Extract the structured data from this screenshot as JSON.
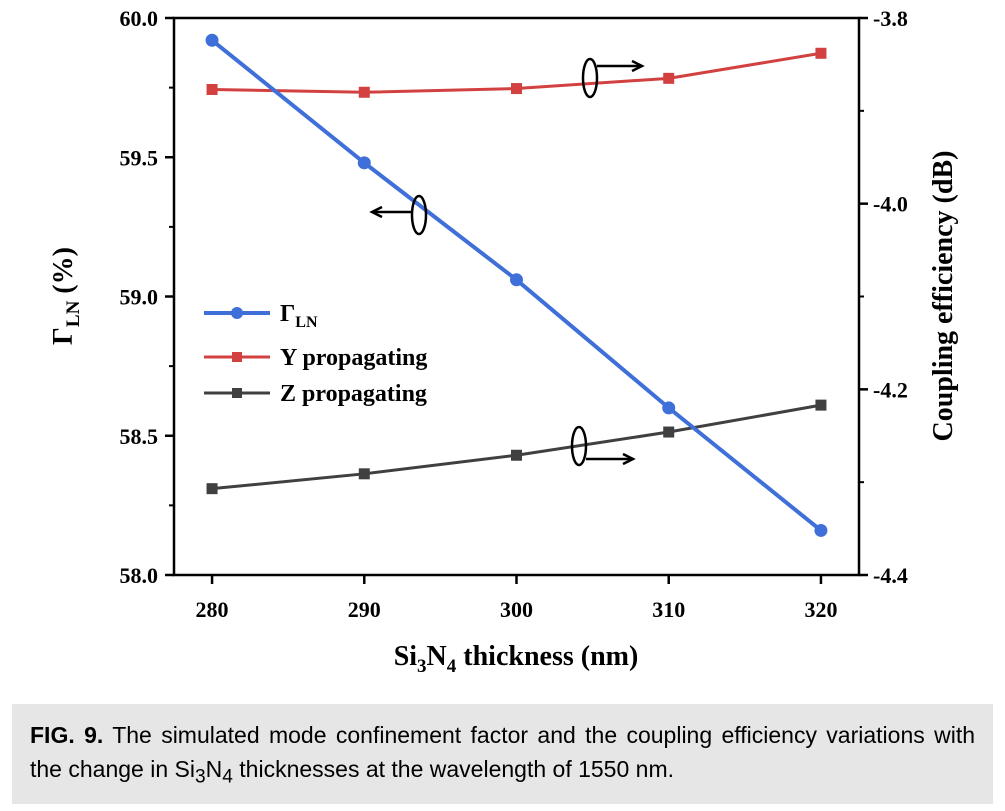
{
  "chart_data": {
    "type": "line",
    "x": [
      280,
      290,
      300,
      310,
      320
    ],
    "x_ticks": [
      "280",
      "290",
      "300",
      "310",
      "320"
    ],
    "xlim": [
      277.5,
      322.5
    ],
    "xlabel_parts": {
      "pre": "Si",
      "sub1": "3",
      "mid": "N",
      "sub2": "4",
      "post": " thickness (nm)"
    },
    "y_left": {
      "label_main": "Γ",
      "label_sub": "LN",
      "label_post": " (%)",
      "lim": [
        58.0,
        60.0
      ],
      "ticks": [
        "58.0",
        "58.5",
        "59.0",
        "59.5",
        "60.0"
      ]
    },
    "y_right": {
      "label": "Coupling efficiency (dB)",
      "lim": [
        -4.4,
        -3.8
      ],
      "ticks": [
        "-4.4",
        "-4.2",
        "-4.0",
        "-3.8"
      ]
    },
    "series": [
      {
        "name_main": "Γ",
        "name_sub": "LN",
        "axis": "left",
        "color": "#3f6fd8",
        "marker": "circle",
        "values": [
          59.92,
          59.48,
          59.06,
          58.6,
          58.16
        ]
      },
      {
        "name": "Y propagating",
        "axis": "right",
        "color": "#d24040",
        "marker": "square",
        "values": [
          -3.877,
          -3.88,
          -3.876,
          -3.865,
          -3.838
        ]
      },
      {
        "name": "Z propagating",
        "axis": "right",
        "color": "#404040",
        "marker": "square",
        "values": [
          -4.307,
          -4.291,
          -4.271,
          -4.246,
          -4.217
        ]
      }
    ],
    "legend_position": "center-left",
    "grid": false
  },
  "caption": {
    "label": "FIG. 9.",
    "text_pre": " The simulated mode confinement factor and the coupling efficiency variations with the change in Si",
    "sub1": "3",
    "mid": "N",
    "sub2": "4",
    "text_post": " thicknesses at the wavelength of 1550 nm."
  },
  "colors": {
    "gamma": "#3f6fd8",
    "y_prop": "#d24040",
    "z_prop": "#404040"
  }
}
